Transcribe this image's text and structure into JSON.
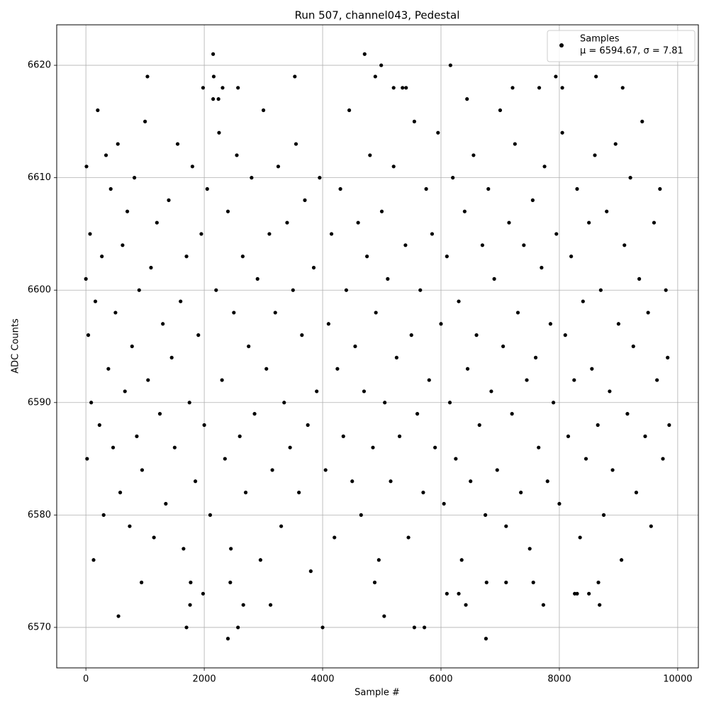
{
  "chart_data": {
    "type": "scatter",
    "title": "Run 507, channel043, Pedestal",
    "x_label": "Sample #",
    "y_label": "ADC Counts",
    "xlim": [
      -493,
      10349
    ],
    "ylim": [
      6566.4,
      6623.6
    ],
    "xticks": [
      0,
      2000,
      4000,
      6000,
      8000,
      10000
    ],
    "yticks": [
      6570,
      6580,
      6590,
      6600,
      6610,
      6620
    ],
    "grid": true,
    "legend_position": "upper right",
    "legend_note": "μ = 6594.67, σ = 7.81",
    "series": [
      {
        "name": "Samples",
        "color": "#000000",
        "x": [
          0,
          10,
          20,
          40,
          70,
          90,
          130,
          160,
          200,
          230,
          270,
          300,
          340,
          380,
          420,
          460,
          500,
          540,
          580,
          620,
          660,
          700,
          740,
          780,
          820,
          860,
          900,
          950,
          1000,
          1050,
          1100,
          1150,
          1200,
          1250,
          1300,
          1350,
          1400,
          1450,
          1500,
          1550,
          1600,
          1650,
          1700,
          1750,
          1800,
          1850,
          1900,
          1950,
          2000,
          2050,
          2100,
          2200,
          2250,
          2300,
          2350,
          2400,
          2450,
          2500,
          2550,
          2600,
          2650,
          2700,
          2750,
          2800,
          2850,
          2900,
          2950,
          3000,
          3050,
          3100,
          3150,
          3200,
          3250,
          3300,
          3350,
          3400,
          3450,
          3500,
          3550,
          3600,
          3650,
          3700,
          3750,
          3800,
          3850,
          3900,
          3950,
          4050,
          4100,
          4150,
          4200,
          4250,
          4300,
          4350,
          4400,
          4450,
          4500,
          4550,
          4600,
          4650,
          4700,
          4750,
          4800,
          4850,
          4900,
          4950,
          5000,
          5050,
          5100,
          5150,
          5200,
          5250,
          5300,
          5400,
          5450,
          5500,
          5550,
          5600,
          5650,
          5700,
          5750,
          5800,
          5850,
          5900,
          5950,
          6000,
          6050,
          6100,
          6150,
          6200,
          6250,
          6300,
          6350,
          6400,
          6450,
          6500,
          6550,
          6600,
          6650,
          6700,
          6750,
          6800,
          6850,
          6900,
          6950,
          7000,
          7050,
          7100,
          7150,
          7200,
          7250,
          7300,
          7350,
          7400,
          7450,
          7500,
          7550,
          7600,
          7650,
          7700,
          7750,
          7800,
          7850,
          7900,
          7950,
          8000,
          8050,
          8100,
          8150,
          8200,
          8250,
          8300,
          8350,
          8400,
          8450,
          8500,
          8550,
          8600,
          8650,
          8700,
          8750,
          8800,
          8850,
          8900,
          8950,
          9000,
          9050,
          9100,
          9150,
          9200,
          9250,
          9300,
          9350,
          9400,
          9450,
          9500,
          9550,
          9600,
          9650,
          9700,
          9750,
          9800,
          9830,
          9856,
          1700,
          2400,
          2570,
          4000,
          5550,
          5720,
          6760,
          550,
          2660,
          3120,
          5040,
          7730,
          8680,
          1760,
          1980,
          6100,
          6300,
          6420,
          8260,
          8300,
          8500,
          940,
          1770,
          2440,
          4880,
          6770,
          7100,
          7560,
          8660,
          2150,
          4710,
          4990,
          6160,
          1040,
          2160,
          3530,
          4890,
          7940,
          8620,
          2310,
          2570,
          1980,
          5200,
          5350,
          5410,
          7210,
          7660,
          8050,
          9070,
          2150,
          2240,
          6440
        ],
        "y": [
          6601,
          6611,
          6585,
          6596,
          6605,
          6590,
          6576,
          6599,
          6616,
          6588,
          6603,
          6580,
          6612,
          6593,
          6609,
          6586,
          6598,
          6613,
          6582,
          6604,
          6591,
          6607,
          6579,
          6595,
          6610,
          6587,
          6600,
          6584,
          6615,
          6592,
          6602,
          6578,
          6606,
          6589,
          6597,
          6581,
          6608,
          6594,
          6586,
          6613,
          6599,
          6577,
          6603,
          6590,
          6611,
          6583,
          6596,
          6605,
          6588,
          6609,
          6580,
          6600,
          6614,
          6592,
          6585,
          6607,
          6577,
          6598,
          6612,
          6587,
          6603,
          6582,
          6595,
          6610,
          6589,
          6601,
          6576,
          6616,
          6593,
          6605,
          6584,
          6598,
          6611,
          6579,
          6590,
          6606,
          6586,
          6600,
          6613,
          6582,
          6596,
          6608,
          6588,
          6575,
          6602,
          6591,
          6610,
          6584,
          6597,
          6605,
          6578,
          6593,
          6609,
          6587,
          6600,
          6616,
          6583,
          6595,
          6606,
          6580,
          6591,
          6603,
          6612,
          6586,
          6598,
          6576,
          6607,
          6590,
          6601,
          6583,
          6611,
          6594,
          6587,
          6604,
          6578,
          6596,
          6615,
          6589,
          6600,
          6582,
          6609,
          6592,
          6605,
          6586,
          6614,
          6597,
          6581,
          6603,
          6590,
          6610,
          6585,
          6599,
          6576,
          6607,
          6593,
          6583,
          6612,
          6596,
          6588,
          6604,
          6580,
          6609,
          6591,
          6601,
          6584,
          6616,
          6595,
          6579,
          6606,
          6589,
          6613,
          6598,
          6582,
          6604,
          6592,
          6577,
          6608,
          6594,
          6586,
          6602,
          6611,
          6583,
          6597,
          6590,
          6605,
          6581,
          6614,
          6596,
          6587,
          6603,
          6592,
          6609,
          6578,
          6599,
          6585,
          6606,
          6593,
          6612,
          6588,
          6600,
          6580,
          6607,
          6591,
          6584,
          6613,
          6597,
          6576,
          6604,
          6589,
          6610,
          6595,
          6582,
          6601,
          6615,
          6587,
          6598,
          6579,
          6606,
          6592,
          6609,
          6585,
          6600,
          6594,
          6588,
          6570,
          6569,
          6570,
          6570,
          6570,
          6570,
          6569,
          6571,
          6572,
          6572,
          6571,
          6572,
          6572,
          6572,
          6573,
          6573,
          6573,
          6572,
          6573,
          6573,
          6573,
          6574,
          6574,
          6574,
          6574,
          6574,
          6574,
          6574,
          6574,
          6621,
          6621,
          6620,
          6620,
          6619,
          6619,
          6619,
          6619,
          6619,
          6619,
          6618,
          6618,
          6618,
          6618,
          6618,
          6618,
          6618,
          6618,
          6618,
          6618,
          6617,
          6617,
          6617
        ]
      }
    ]
  }
}
